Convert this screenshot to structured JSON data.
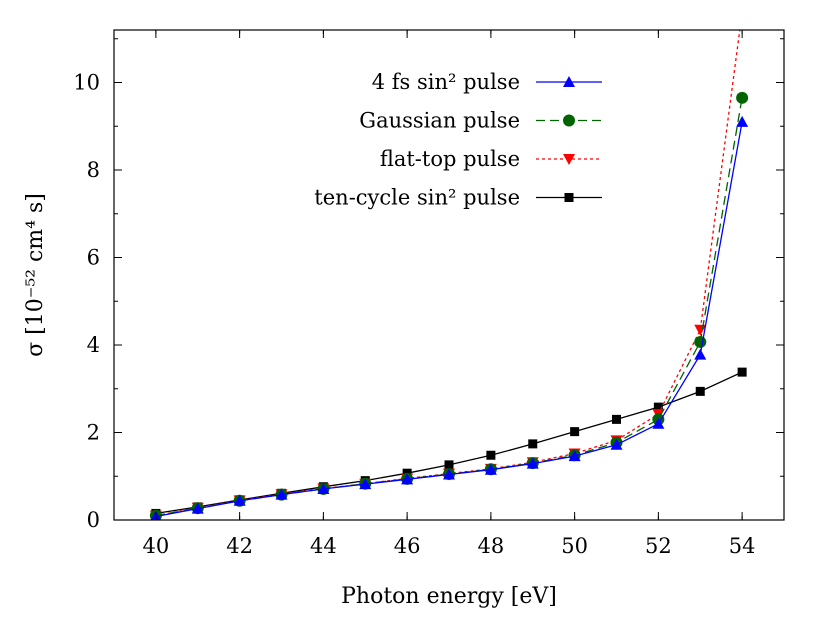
{
  "chart_data": {
    "type": "line",
    "xlabel": "Photon energy [eV]",
    "ylabel": "σ [10⁻⁵² cm⁴ s]",
    "xlim": [
      39,
      55
    ],
    "ylim": [
      0,
      11.2
    ],
    "xticks": [
      40,
      42,
      44,
      46,
      48,
      50,
      52,
      54
    ],
    "yticks": [
      0,
      2,
      4,
      6,
      8,
      10
    ],
    "xtick_labels": [
      "40",
      "42",
      "44",
      "46",
      "48",
      "50",
      "52",
      "54"
    ],
    "ytick_labels": [
      "0",
      "2",
      "4",
      "6",
      "8",
      "10"
    ],
    "grid": false,
    "legend_position": "top-right",
    "series": [
      {
        "name": "4 fs sin² pulse",
        "color": "#0000ff",
        "line_style": "solid",
        "marker": "triangle-up",
        "x": [
          40,
          41,
          42,
          43,
          44,
          45,
          46,
          47,
          48,
          49,
          50,
          51,
          52,
          53,
          54
        ],
        "y": [
          0.08,
          0.26,
          0.44,
          0.58,
          0.71,
          0.82,
          0.93,
          1.04,
          1.15,
          1.29,
          1.46,
          1.72,
          2.2,
          3.78,
          9.1
        ]
      },
      {
        "name": "Gaussian pulse",
        "color": "#006400",
        "line_style": "dashed",
        "marker": "circle",
        "x": [
          40,
          41,
          42,
          43,
          44,
          45,
          46,
          47,
          48,
          49,
          50,
          51,
          52,
          53,
          54
        ],
        "y": [
          0.1,
          0.27,
          0.44,
          0.58,
          0.71,
          0.83,
          0.94,
          1.05,
          1.16,
          1.3,
          1.48,
          1.77,
          2.3,
          4.07,
          9.65
        ]
      },
      {
        "name": "flat-top pulse",
        "color": "#ff0000",
        "line_style": "dotted",
        "marker": "triangle-down",
        "x": [
          40,
          41,
          42,
          43,
          44,
          45,
          46,
          47,
          48,
          49,
          50,
          51,
          52,
          53,
          54
        ],
        "y": [
          0.1,
          0.28,
          0.45,
          0.59,
          0.72,
          0.83,
          0.95,
          1.06,
          1.17,
          1.32,
          1.52,
          1.82,
          2.42,
          4.35,
          11.6
        ]
      },
      {
        "name": "ten-cycle sin² pulse",
        "color": "#000000",
        "line_style": "solid",
        "marker": "square",
        "x": [
          40,
          41,
          42,
          43,
          44,
          45,
          46,
          47,
          48,
          49,
          50,
          51,
          52,
          53,
          54
        ],
        "y": [
          0.15,
          0.3,
          0.46,
          0.61,
          0.76,
          0.9,
          1.07,
          1.26,
          1.48,
          1.74,
          2.02,
          2.3,
          2.58,
          2.94,
          3.38
        ]
      }
    ]
  }
}
